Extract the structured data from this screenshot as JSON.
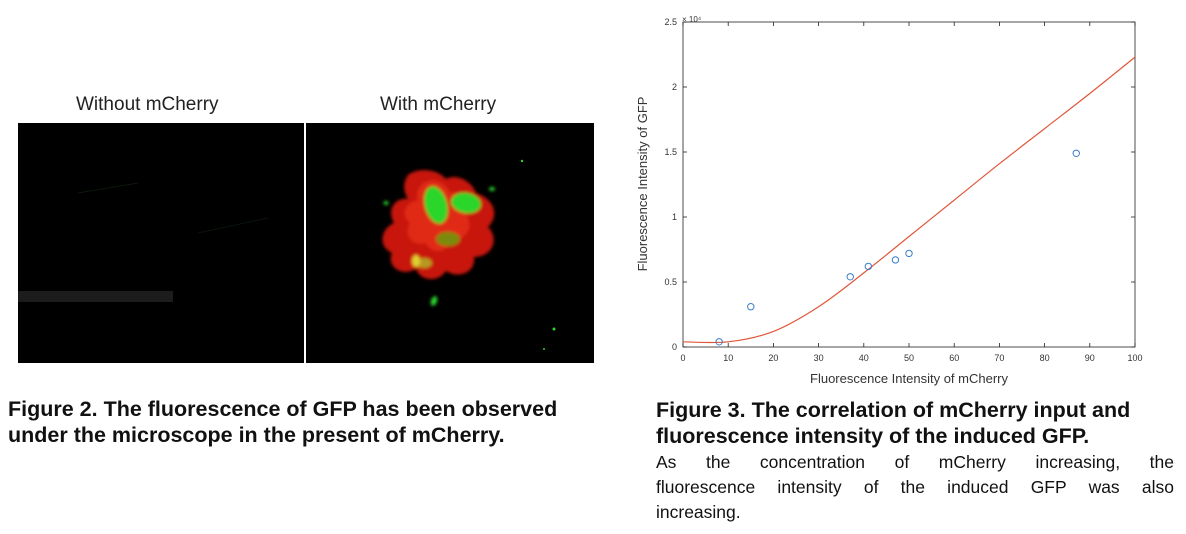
{
  "figure2": {
    "label_without": "Without mCherry",
    "label_with": "With mCherry",
    "caption_line1": "Figure 2. The fluorescence of GFP has been observed",
    "caption_line2": "under the microscope in the present of mCherry."
  },
  "figure3": {
    "caption_line1": "Figure 3. The correlation of mCherry input and",
    "caption_line2": "fluorescence intensity of the induced GFP.",
    "body_line1": "As the concentration of mCherry increasing, the",
    "body_line2": "fluorescence intensity of the induced GFP was also",
    "body_line3": "increasing."
  },
  "chart_data": {
    "type": "scatter",
    "xlabel": "Fluorescence Intensity of mCherry",
    "ylabel": "Fluorescence Intensity of GFP",
    "y_multiplier": "× 10⁴",
    "xlim": [
      0,
      100
    ],
    "ylim": [
      0,
      2.5
    ],
    "xticks": [
      0,
      10,
      20,
      30,
      40,
      50,
      60,
      70,
      80,
      90,
      100
    ],
    "yticks": [
      0,
      0.5,
      1,
      1.5,
      2,
      2.5
    ],
    "ytick_labels": [
      "0",
      "0.5",
      "1",
      "1.5",
      "2",
      "2.5"
    ],
    "points": [
      {
        "x": 8,
        "y": 0.04
      },
      {
        "x": 15,
        "y": 0.31
      },
      {
        "x": 37,
        "y": 0.54
      },
      {
        "x": 41,
        "y": 0.62
      },
      {
        "x": 47,
        "y": 0.67
      },
      {
        "x": 50,
        "y": 0.72
      },
      {
        "x": 87,
        "y": 1.49
      }
    ],
    "fit_curve": {
      "x": [
        0,
        10,
        20,
        30,
        40,
        50,
        60,
        70,
        80,
        90,
        100
      ],
      "y": [
        0.04,
        0.04,
        0.12,
        0.31,
        0.57,
        0.85,
        1.13,
        1.41,
        1.68,
        1.95,
        2.23
      ]
    },
    "marker_color": "#3a7ec9",
    "curve_color": "#e0573a",
    "grid": false
  }
}
